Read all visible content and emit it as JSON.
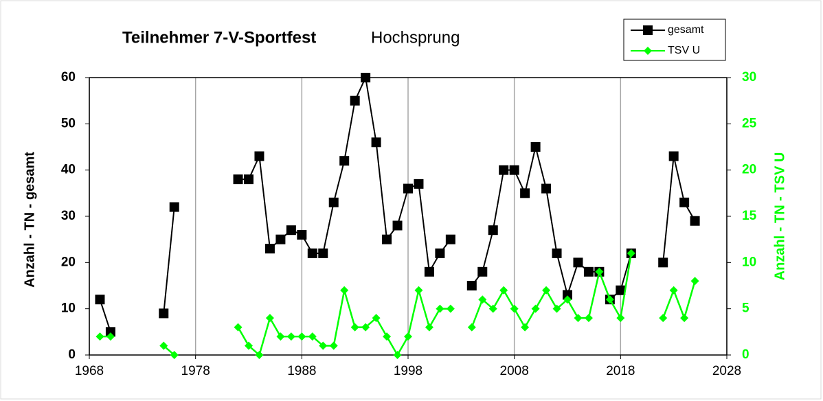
{
  "chart_data": {
    "type": "line",
    "title": "Teilnehmer 7-V-Sportfest",
    "subtitle": "Hochsprung",
    "ylabel": "Anzahl - TN - gesamt",
    "y2label": "Anzahl - TN - TSV U",
    "x": [
      1969,
      1970,
      1971,
      1972,
      1973,
      1974,
      1975,
      1976,
      1977,
      1978,
      1979,
      1980,
      1981,
      1982,
      1983,
      1984,
      1985,
      1986,
      1987,
      1988,
      1989,
      1990,
      1991,
      1992,
      1993,
      1994,
      1995,
      1996,
      1997,
      1998,
      1999,
      2000,
      2001,
      2002,
      2003,
      2004,
      2005,
      2006,
      2007,
      2008,
      2009,
      2010,
      2011,
      2012,
      2013,
      2014,
      2015,
      2016,
      2017,
      2018,
      2019,
      2020,
      2021,
      2022,
      2023,
      2024,
      2025
    ],
    "series": [
      {
        "name": "gesamt",
        "color": "#000000",
        "marker": "square",
        "values": [
          12,
          5,
          null,
          null,
          null,
          null,
          9,
          32,
          null,
          null,
          null,
          null,
          null,
          38,
          38,
          43,
          23,
          25,
          27,
          26,
          22,
          22,
          33,
          42,
          55,
          60,
          46,
          25,
          28,
          36,
          37,
          18,
          22,
          25,
          null,
          15,
          18,
          27,
          40,
          40,
          35,
          45,
          36,
          22,
          13,
          20,
          18,
          18,
          12,
          14,
          22,
          null,
          null,
          20,
          43,
          33,
          29
        ]
      },
      {
        "name": "TSV U",
        "color": "#00ff00",
        "marker": "diamond",
        "axis": "y2",
        "values": [
          2,
          2,
          null,
          null,
          null,
          null,
          1,
          0,
          null,
          null,
          null,
          null,
          null,
          3,
          1,
          0,
          4,
          2,
          2,
          2,
          2,
          1,
          1,
          7,
          3,
          3,
          4,
          2,
          0,
          2,
          7,
          3,
          5,
          5,
          null,
          3,
          6,
          5,
          7,
          5,
          3,
          5,
          7,
          5,
          6,
          4,
          4,
          9,
          6,
          4,
          11,
          null,
          null,
          4,
          7,
          4,
          8
        ]
      }
    ],
    "xlim": [
      1968,
      2028
    ],
    "xticks": [
      1968,
      1978,
      1988,
      1998,
      2008,
      2018,
      2028
    ],
    "ylim": [
      0,
      60
    ],
    "yticks": [
      0,
      10,
      20,
      30,
      40,
      50,
      60
    ],
    "y2lim": [
      0,
      30
    ],
    "y2ticks": [
      0,
      5,
      10,
      15,
      20,
      25,
      30
    ],
    "grid": "x",
    "legend": "upper right"
  }
}
